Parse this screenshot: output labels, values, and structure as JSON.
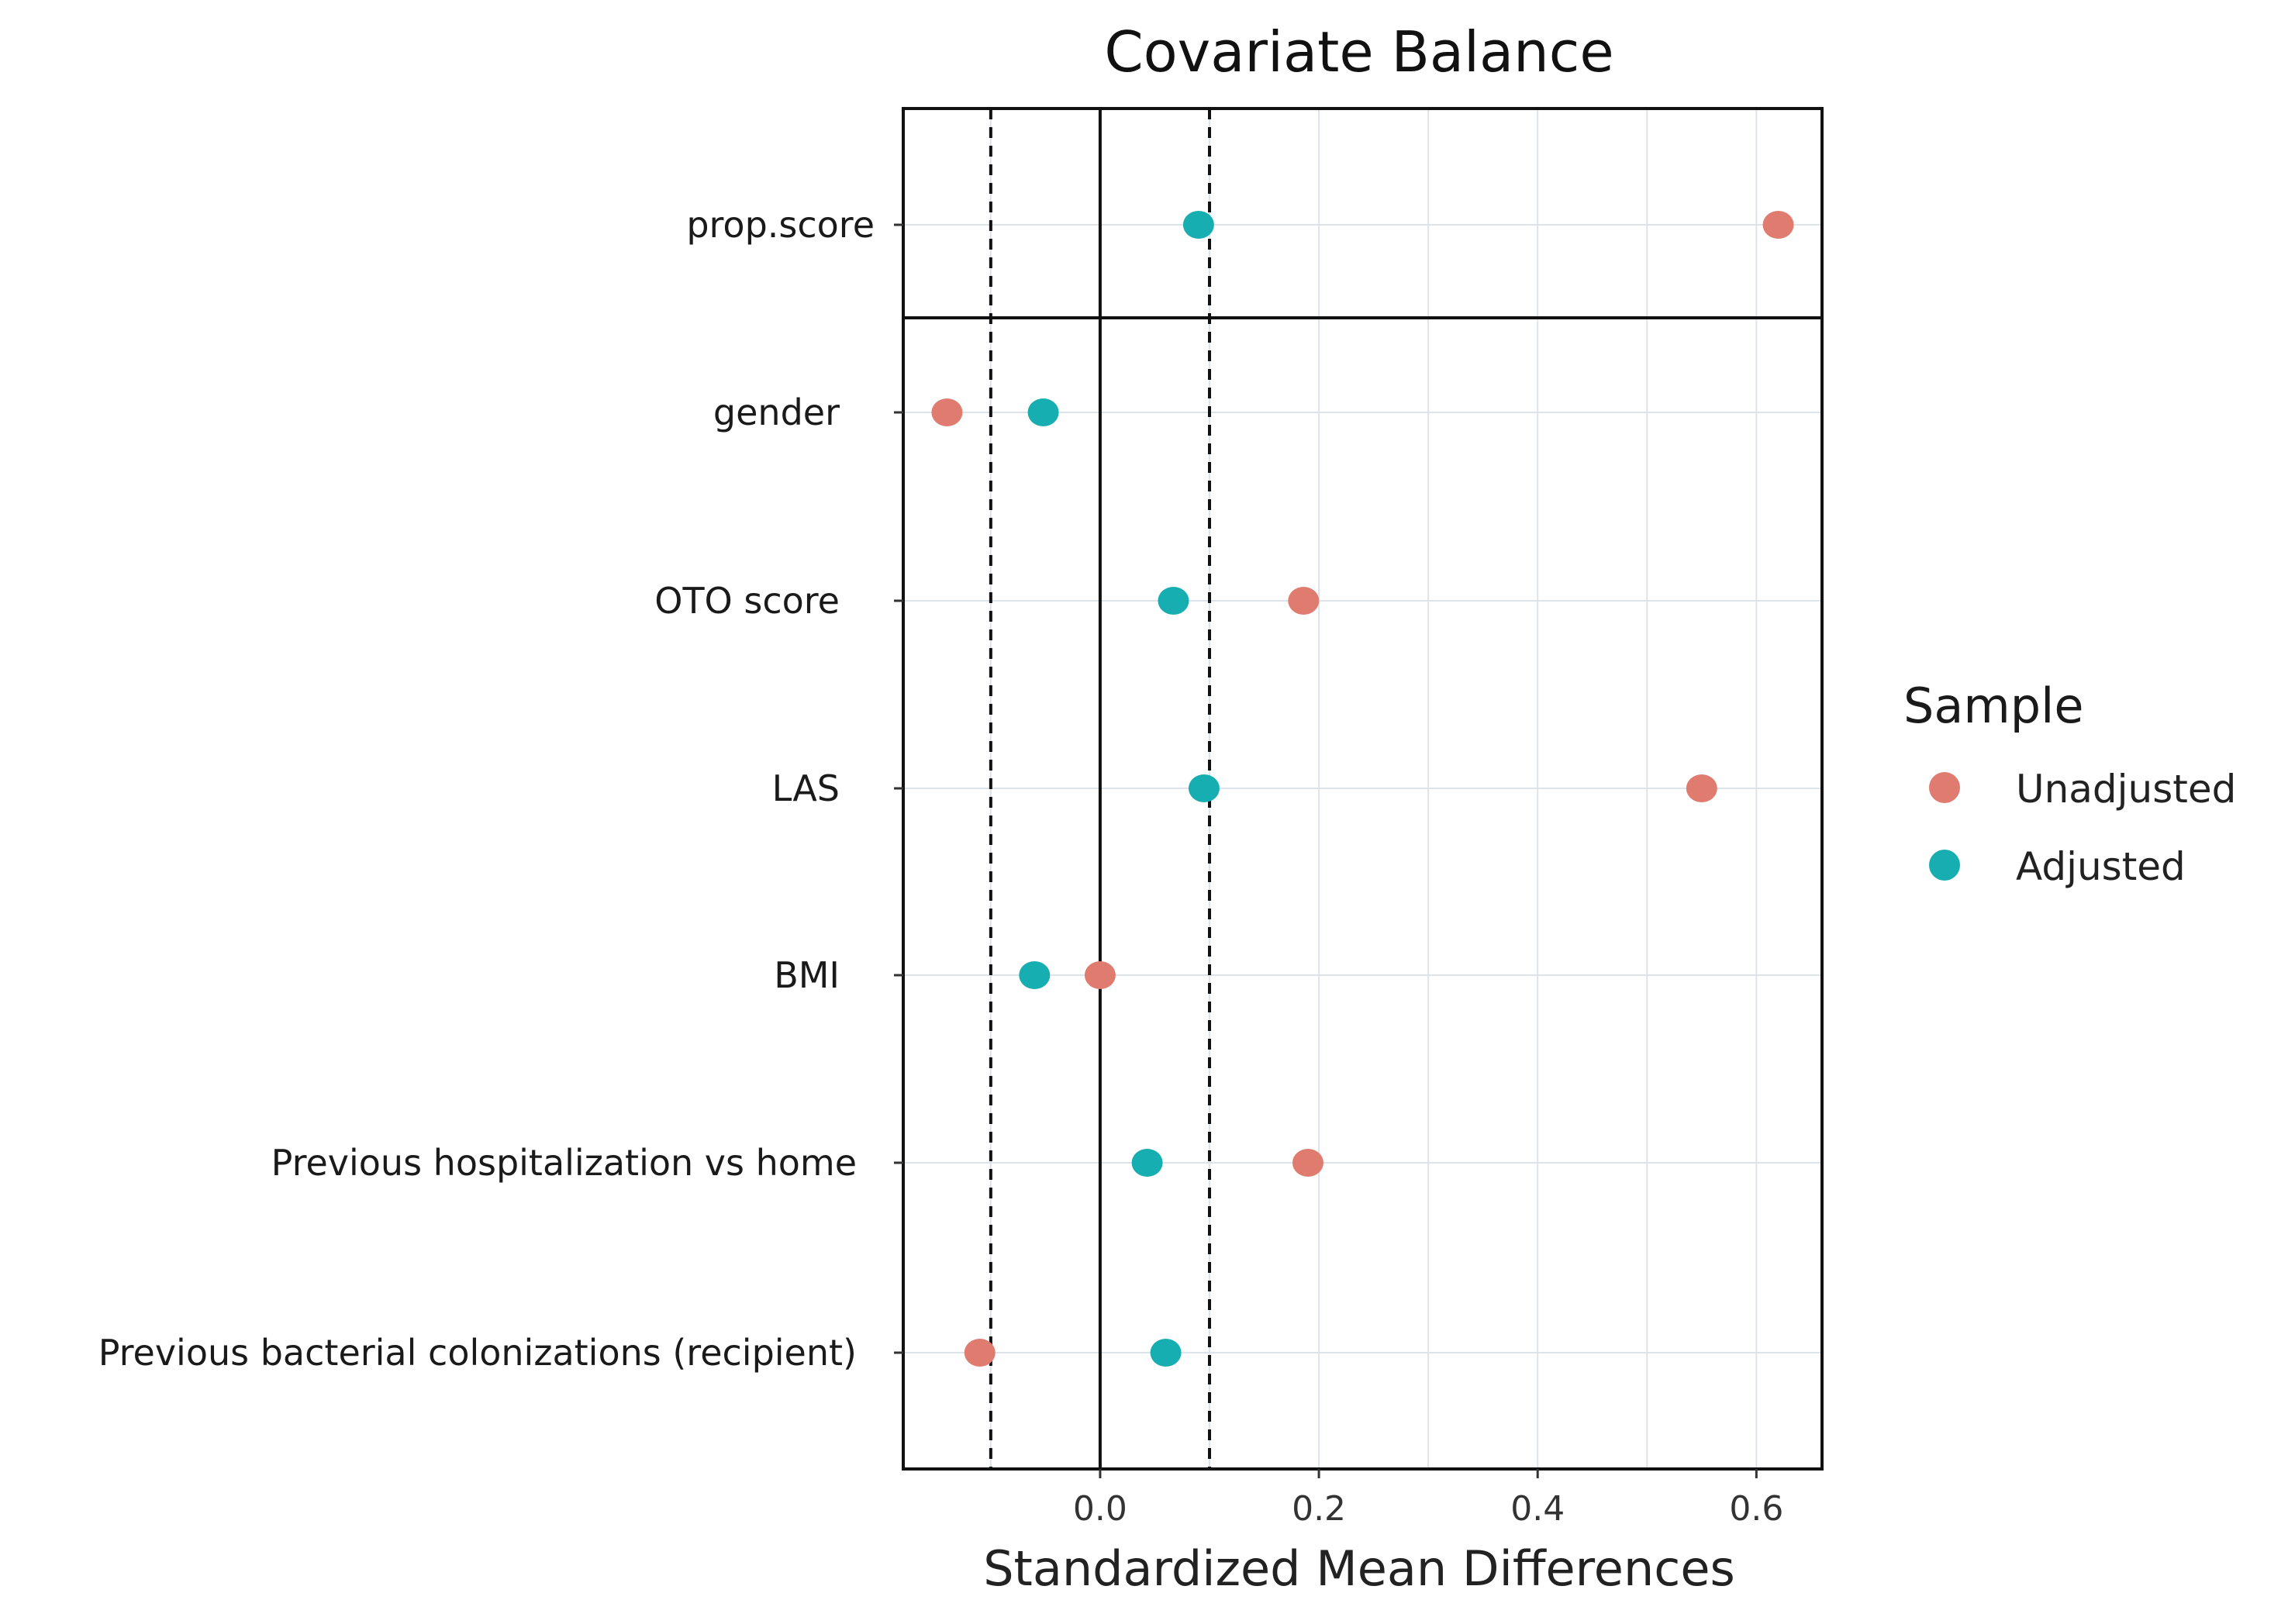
{
  "chart_data": {
    "type": "scatter",
    "title": "Covariate Balance",
    "xlabel": "Standardized Mean Differences",
    "xlim": [
      -0.18,
      0.66
    ],
    "xticks": [
      "0.0",
      "0.2",
      "0.4",
      "0.6"
    ],
    "xtick_values": [
      0.0,
      0.2,
      0.4,
      0.6
    ],
    "thresholds": [
      -0.1,
      0.1
    ],
    "reference_line": 0.0,
    "panels": [
      {
        "name": "top",
        "covariates": [
          "prop.score"
        ]
      },
      {
        "name": "bottom",
        "covariates": [
          "gender",
          "OTO score",
          "LAS",
          "BMI",
          "Previous hospitalization vs home",
          "Previous bacterial colonizations (recipient)"
        ]
      }
    ],
    "covariates": [
      "prop.score",
      "gender",
      "OTO score",
      "LAS",
      "BMI",
      "Previous hospitalization vs home",
      "Previous bacterial colonizations (recipient)"
    ],
    "series": [
      {
        "name": "Unadjusted",
        "color": "#E07B6F",
        "values": [
          0.62,
          -0.14,
          0.186,
          0.55,
          0.0,
          0.19,
          -0.11
        ]
      },
      {
        "name": "Adjusted",
        "color": "#16AEB0",
        "values": [
          0.09,
          -0.052,
          0.067,
          0.095,
          -0.06,
          0.043,
          0.06
        ]
      }
    ],
    "legend": {
      "title": "Sample",
      "position": "right"
    }
  }
}
